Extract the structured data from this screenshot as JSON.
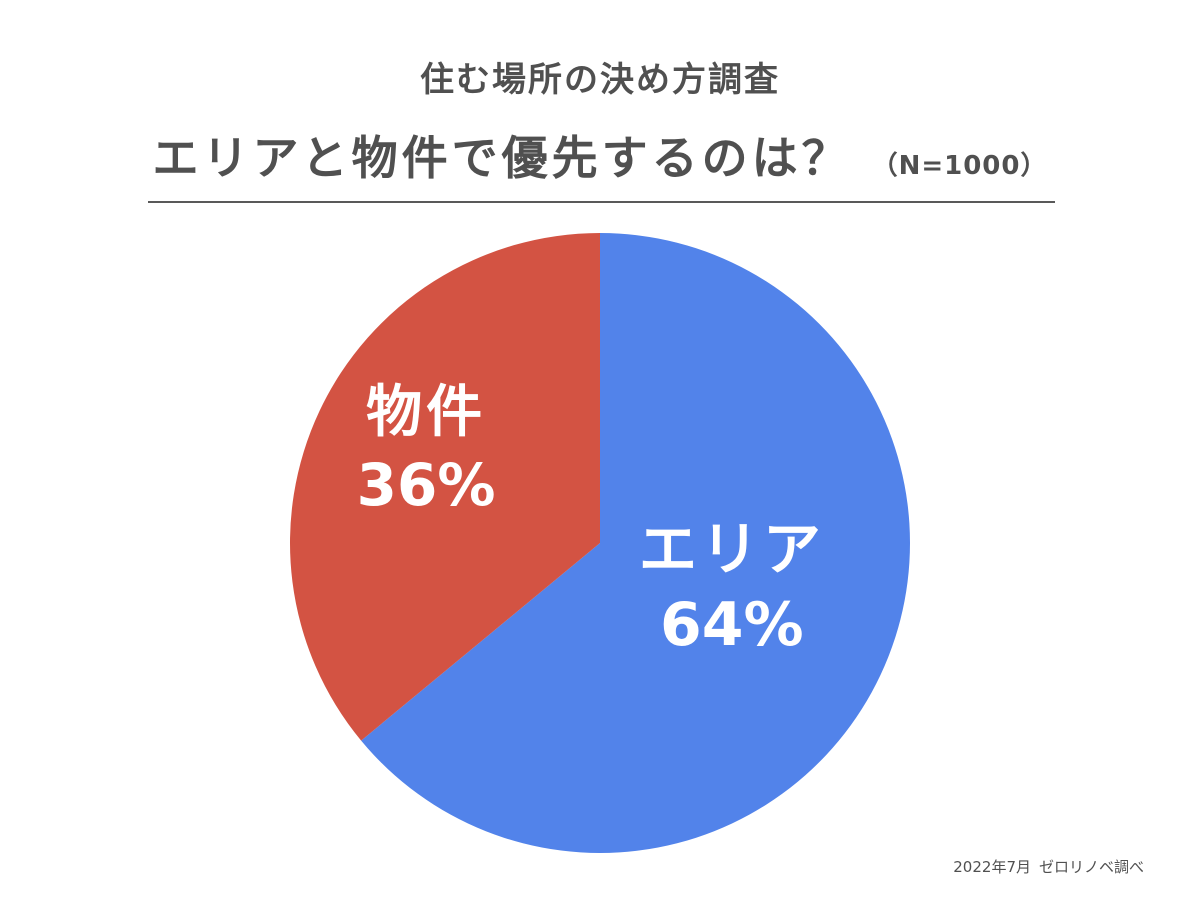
{
  "header": {
    "subtitle": "住む場所の決め方調査",
    "title": "エリアと物件で優先するのは？",
    "sample_size": "（N=1000）"
  },
  "chart_data": {
    "type": "pie",
    "title": "エリアと物件で優先するのは？",
    "subtitle": "住む場所の決め方調査",
    "annotation": "（N=1000）",
    "start_angle_deg": 0,
    "direction": "clockwise",
    "legend": "none",
    "slices": [
      {
        "name": "エリア",
        "value": 64,
        "label": "64%",
        "color": "#5283EA"
      },
      {
        "name": "物件",
        "value": 36,
        "label": "36%",
        "color": "#D35343"
      }
    ],
    "label_color": "#FFFFFF"
  },
  "footer": {
    "date": "2022年7月",
    "source": "ゼロリノベ調べ"
  }
}
